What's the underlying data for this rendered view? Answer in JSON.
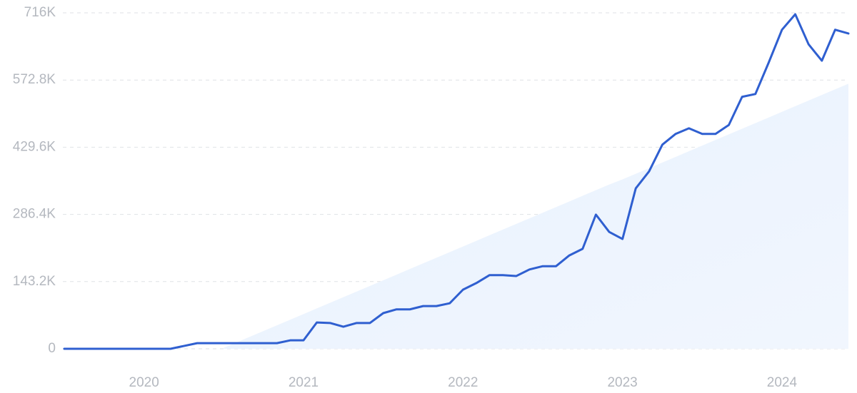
{
  "chart_data": {
    "type": "line",
    "categories": [
      null,
      null,
      null,
      null,
      null,
      null,
      "2020",
      null,
      null,
      null,
      null,
      null,
      null,
      null,
      null,
      null,
      null,
      null,
      "2021",
      null,
      null,
      null,
      null,
      null,
      null,
      null,
      null,
      null,
      null,
      null,
      "2022",
      null,
      null,
      null,
      null,
      null,
      null,
      null,
      null,
      null,
      null,
      null,
      "2023",
      null,
      null,
      null,
      null,
      null,
      null,
      null,
      null,
      null,
      null,
      null,
      "2024",
      null,
      null,
      null,
      null,
      null
    ],
    "series": [
      {
        "type": "area",
        "color": "#e3eefc",
        "values": [
          null,
          null,
          null,
          null,
          null,
          null,
          null,
          null,
          null,
          null,
          null,
          null,
          2000,
          14000,
          26000,
          38000,
          50000,
          62000,
          74000,
          86000,
          98000,
          110000,
          122000,
          134000,
          146000,
          158000,
          170000,
          182000,
          194000,
          206000,
          218000,
          230000,
          242000,
          254000,
          266000,
          278000,
          290000,
          302000,
          314000,
          326000,
          338000,
          350000,
          361000,
          373000,
          385000,
          397000,
          409000,
          421000,
          433000,
          445000,
          457000,
          469000,
          481000,
          493000,
          505000,
          517000,
          529000,
          541000,
          553000,
          565000
        ]
      },
      {
        "type": "line",
        "color": "#2f5fd0",
        "values": [
          0,
          0,
          0,
          0,
          0,
          0,
          0,
          0,
          0,
          6000,
          12000,
          12000,
          12000,
          12000,
          12000,
          12000,
          12000,
          18000,
          18000,
          56000,
          55000,
          47000,
          55000,
          55000,
          76000,
          84000,
          84000,
          91000,
          91000,
          97000,
          126000,
          140000,
          157000,
          157000,
          155000,
          169000,
          176000,
          176000,
          199000,
          213000,
          286000,
          249000,
          234000,
          342000,
          378000,
          435000,
          458000,
          470000,
          458000,
          458000,
          477000,
          537000,
          543000,
          610000,
          680000,
          713000,
          649000,
          614000,
          680000,
          672000
        ]
      }
    ],
    "ylim": [
      0,
      716000
    ],
    "yticks": [
      0,
      {
        "value": 143200,
        "label": "143.2K"
      },
      {
        "value": 286400,
        "label": "286.4K"
      },
      {
        "value": 429600,
        "label": "429.6K"
      },
      {
        "value": 572800,
        "label": "572.8K"
      },
      {
        "value": 716000,
        "label": "716K"
      }
    ],
    "grid": true
  }
}
